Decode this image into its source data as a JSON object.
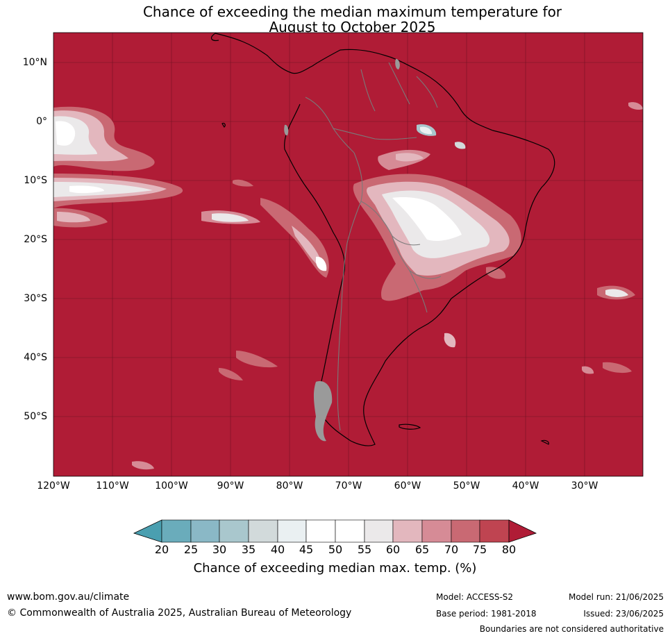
{
  "title": {
    "line1": "Chance of exceeding the median maximum temperature for",
    "line2": "August to October 2025"
  },
  "lat_labels": [
    "10°N",
    "0°",
    "10°S",
    "20°S",
    "30°S",
    "40°S",
    "50°S"
  ],
  "lon_labels": [
    "120°W",
    "110°W",
    "100°W",
    "90°W",
    "80°W",
    "70°W",
    "60°W",
    "50°W",
    "40°W",
    "30°W"
  ],
  "colorbar": {
    "ticks": [
      "20",
      "25",
      "30",
      "35",
      "40",
      "45",
      "50",
      "55",
      "60",
      "65",
      "70",
      "75",
      "80"
    ],
    "colors": [
      "#4a9fb0",
      "#6aacbb",
      "#8ab8c6",
      "#a9c7cd",
      "#d2dadb",
      "#eaf0f2",
      "#ffffff",
      "#ffffff",
      "#ebe9ea",
      "#e3b7be",
      "#d68b96",
      "#c96973",
      "#bf4451",
      "#b01c36"
    ],
    "label": "Chance of exceeding median max. temp. (%)"
  },
  "map": {
    "background_color": "#b01c36",
    "land_mask_color": "#9a9a9a"
  },
  "footer": {
    "url": "www.bom.gov.au/climate",
    "copyright": "© Commonwealth of Australia 2025, Australian Bureau of Meteorology",
    "model": "Model: ACCESS-S2",
    "base_period": "Base period: 1981-2018",
    "model_run": "Model run: 21/06/2025",
    "issued": "Issued: 23/06/2025",
    "disclaimer": "Boundaries are not considered authoritative"
  }
}
